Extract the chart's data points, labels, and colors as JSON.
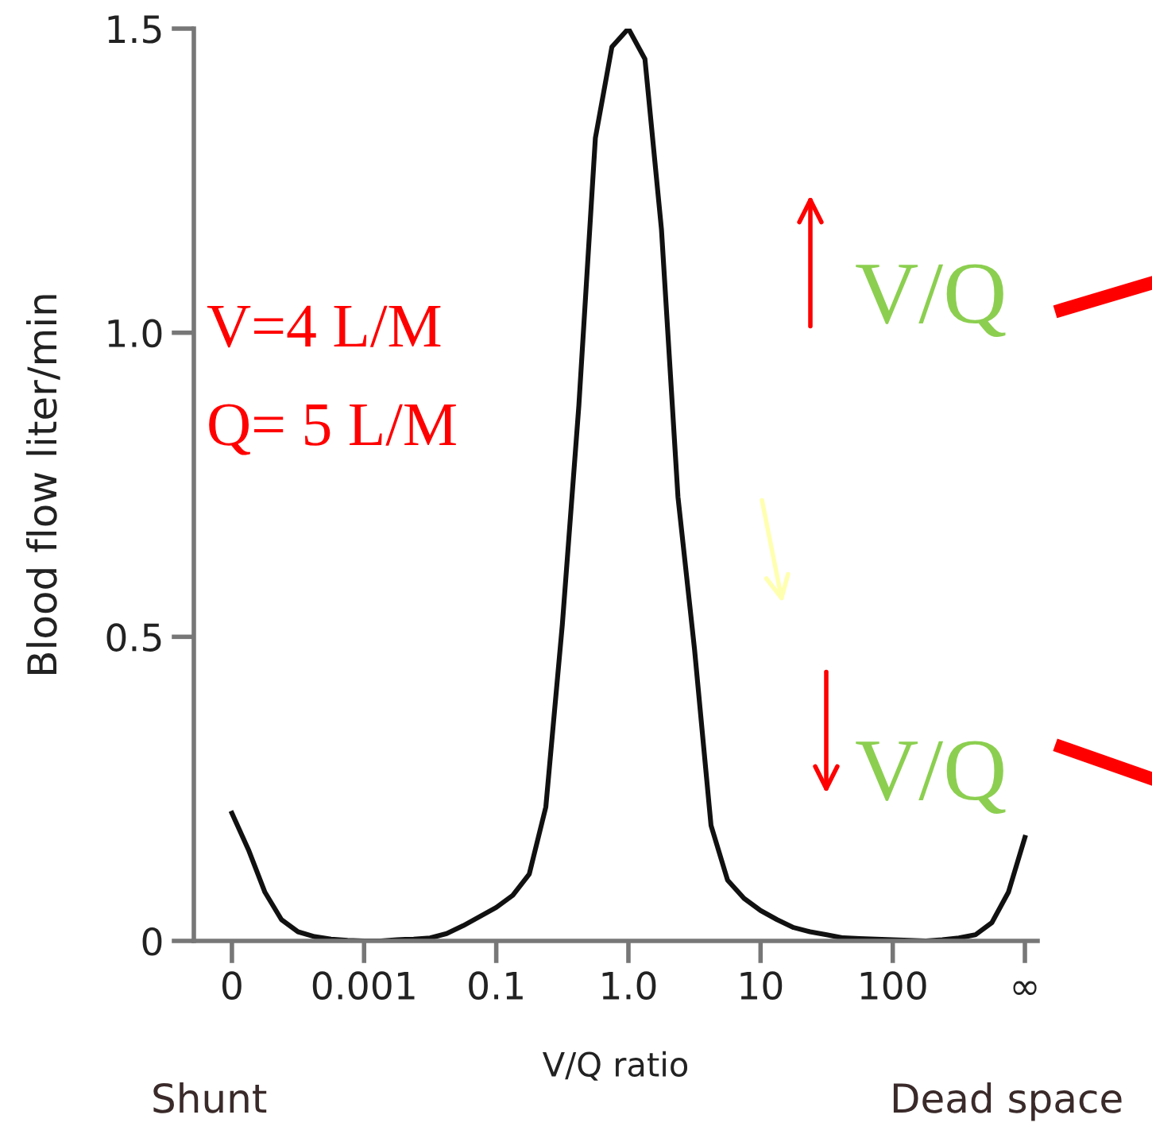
{
  "chart_data": {
    "type": "line",
    "xlabel": "V/Q ratio",
    "ylabel": "Blood flow liter/min",
    "categories": [
      "0",
      null,
      null,
      null,
      null,
      null,
      null,
      null,
      "0.001",
      null,
      null,
      null,
      null,
      null,
      null,
      null,
      "0.1",
      null,
      null,
      null,
      null,
      null,
      null,
      null,
      "1.0",
      null,
      null,
      null,
      null,
      null,
      null,
      null,
      "10",
      null,
      null,
      null,
      null,
      null,
      null,
      null,
      "100",
      null,
      null,
      null,
      null,
      null,
      null,
      null,
      "∞"
    ],
    "series": [
      {
        "color": "#111111",
        "values": [
          0.21,
          0.15,
          0.08,
          0.035,
          0.015,
          0.007,
          0.003,
          0.001,
          0,
          0,
          0.002,
          0.003,
          0.005,
          0.012,
          0.025,
          0.04,
          0.055,
          0.075,
          0.11,
          0.22,
          0.52,
          0.88,
          1.32,
          1.47,
          1.5,
          1.45,
          1.17,
          0.73,
          0.48,
          0.19,
          0.1,
          0.07,
          0.05,
          0.035,
          0.022,
          0.015,
          0.01,
          0.005,
          0.004,
          0.003,
          0.002,
          0.001,
          0,
          0.002,
          0.005,
          0.01,
          0.03,
          0.08,
          0.17
        ]
      }
    ],
    "ylim": [
      0,
      1.5
    ],
    "yticks": [
      0,
      0.5,
      {
        "value": 1,
        "label": "1.0"
      },
      1.5
    ],
    "grid": false,
    "legend": false,
    "marker": "none",
    "line_style": "solid",
    "annotations": [
      "V=4 L/M",
      "Q= 5 L/M",
      "V/Q",
      "V/Q",
      "Shunt",
      "Dead space"
    ]
  }
}
